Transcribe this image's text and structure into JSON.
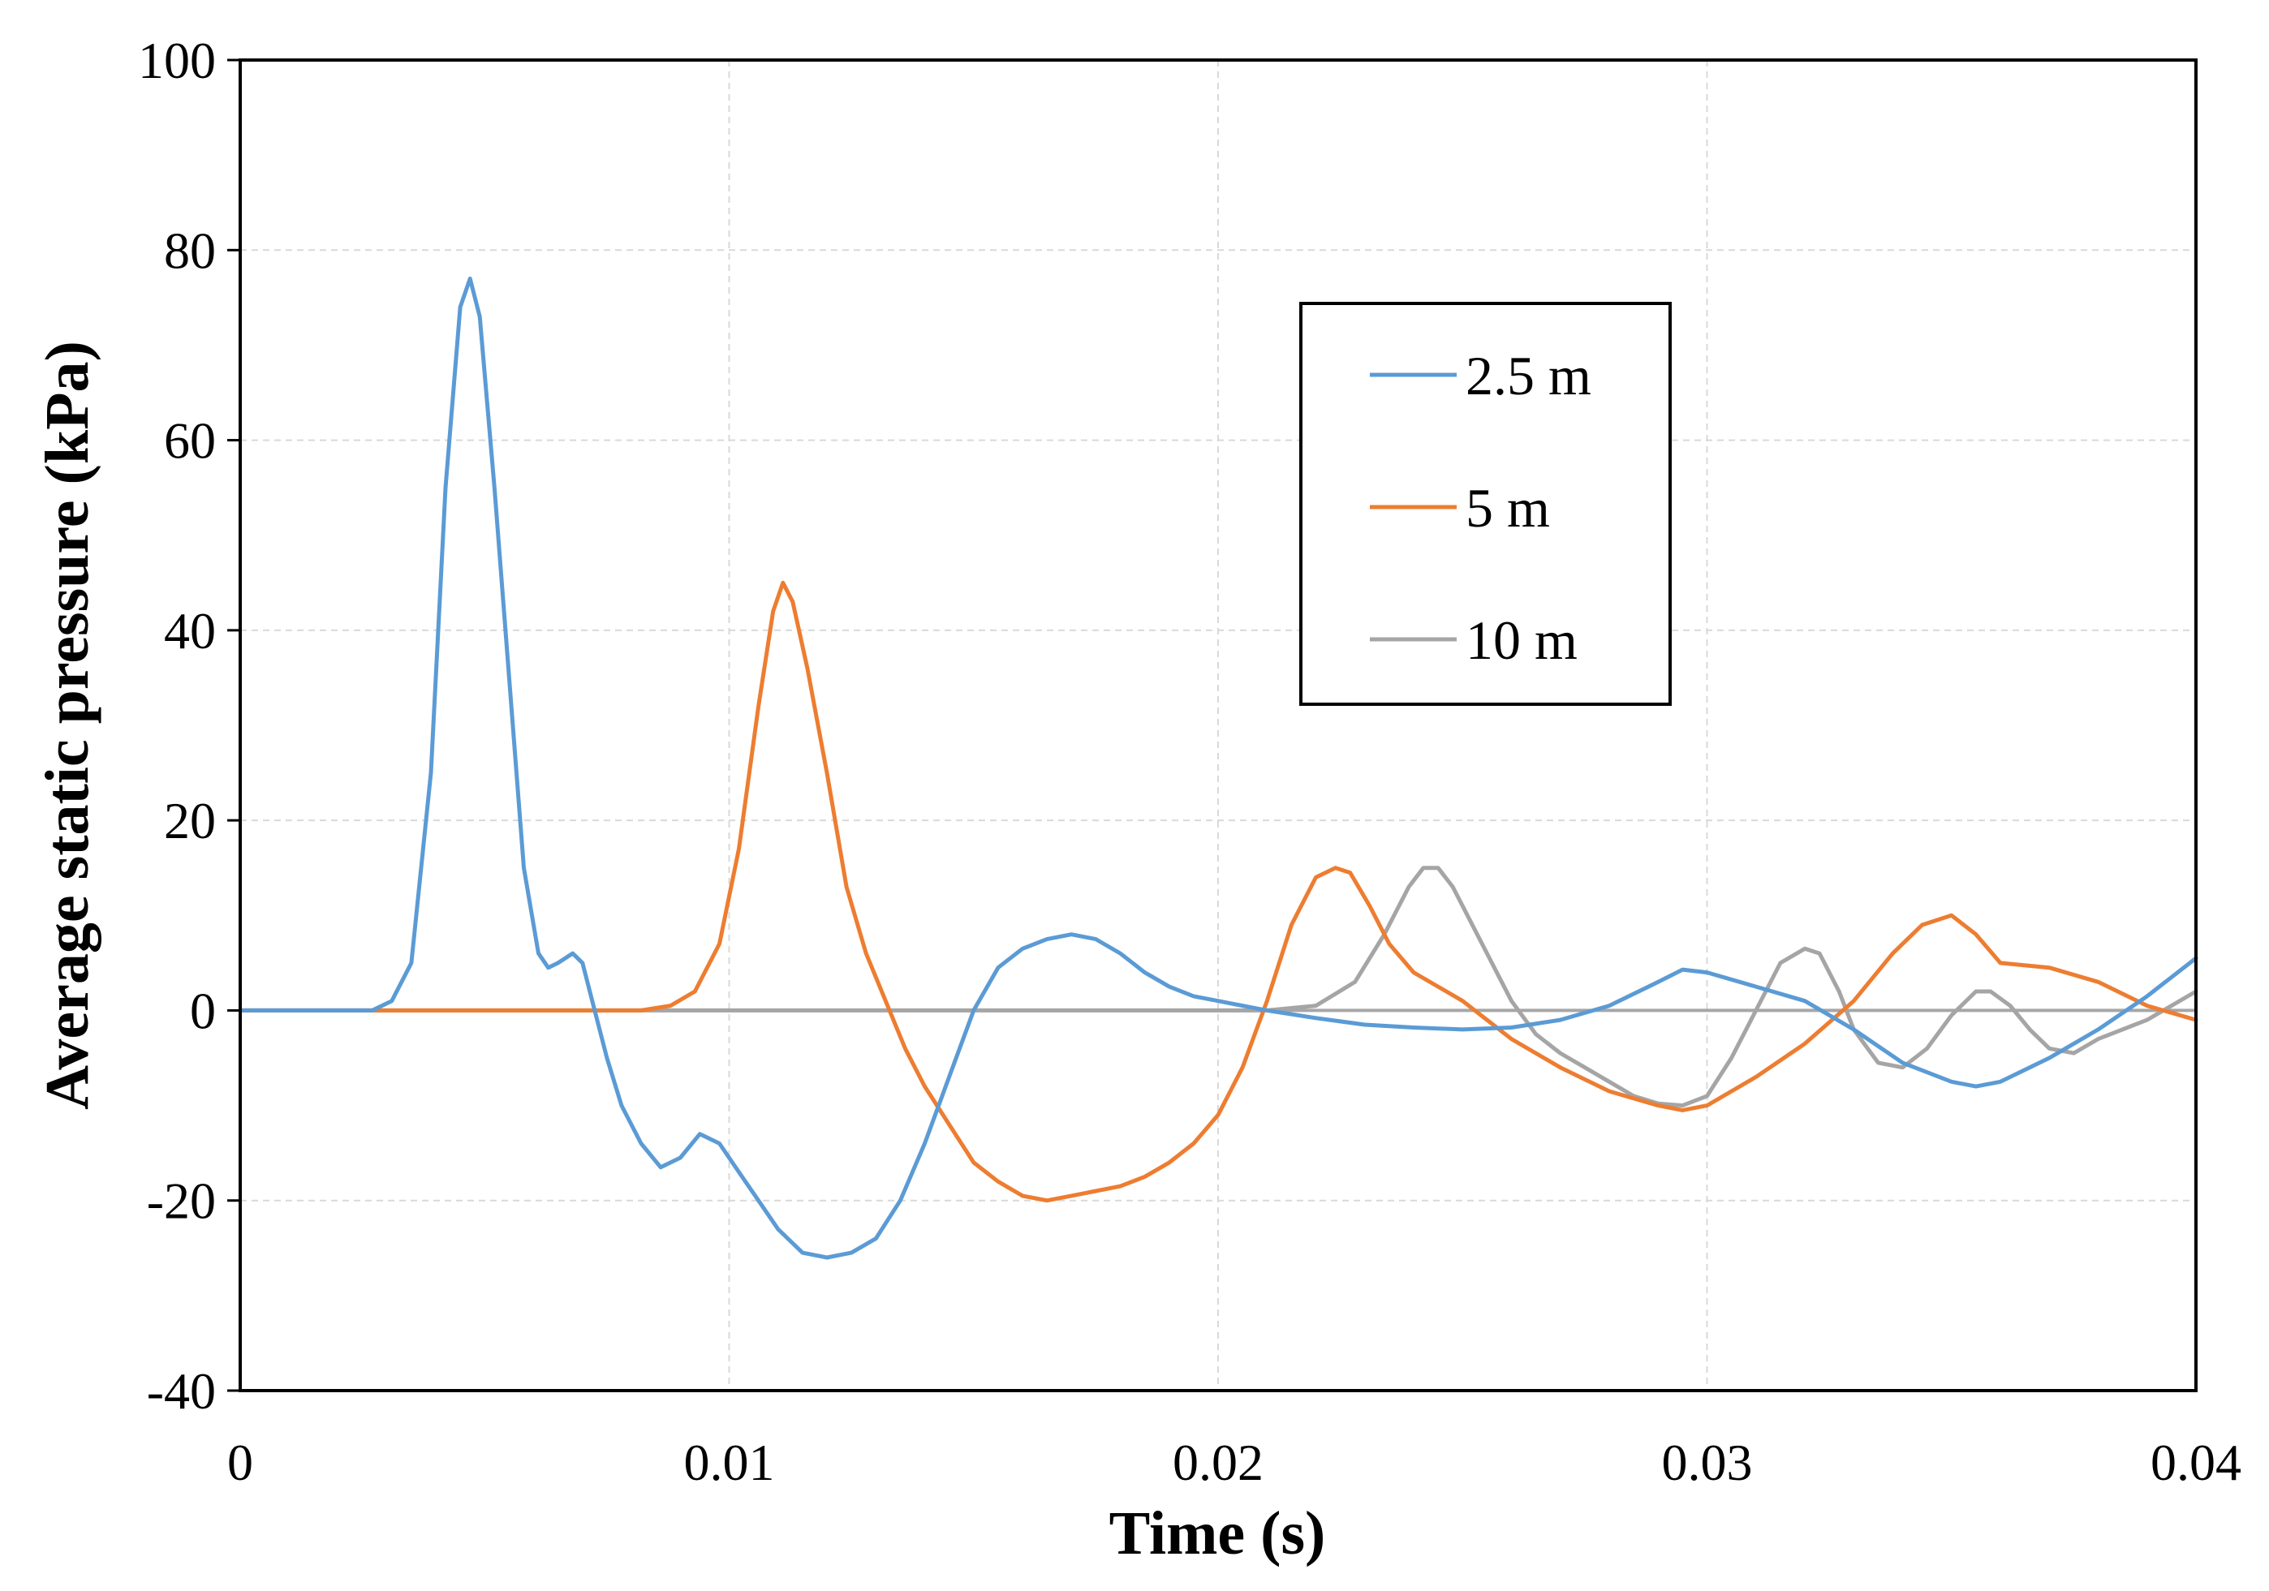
{
  "chart_data": {
    "type": "line",
    "title": "",
    "xlabel": "Time (s)",
    "ylabel": "Average static pressure (kPa)",
    "xlim": [
      0,
      0.04
    ],
    "ylim": [
      -40,
      100
    ],
    "x_ticks": [
      {
        "value": 0,
        "label": "0"
      },
      {
        "value": 0.01,
        "label": "0.01"
      },
      {
        "value": 0.02,
        "label": "0.02"
      },
      {
        "value": 0.03,
        "label": "0.03"
      },
      {
        "value": 0.04,
        "label": "0.04"
      }
    ],
    "y_ticks": [
      {
        "value": -40,
        "label": "-40"
      },
      {
        "value": -20,
        "label": "-20"
      },
      {
        "value": 0,
        "label": "0"
      },
      {
        "value": 20,
        "label": "20"
      },
      {
        "value": 40,
        "label": "40"
      },
      {
        "value": 60,
        "label": "60"
      },
      {
        "value": 80,
        "label": "80"
      },
      {
        "value": 100,
        "label": "100"
      }
    ],
    "grid": true,
    "legend_position": "upper-right",
    "series": [
      {
        "name": "2.5 m",
        "color": "#5B9BD5",
        "x": [
          0,
          0.0027,
          0.0031,
          0.0035,
          0.0039,
          0.0042,
          0.0045,
          0.0047,
          0.0049,
          0.0052,
          0.0055,
          0.0058,
          0.0061,
          0.0063,
          0.0065,
          0.0068,
          0.007,
          0.0072,
          0.0075,
          0.0078,
          0.0082,
          0.0086,
          0.009,
          0.0094,
          0.0098,
          0.0102,
          0.0106,
          0.011,
          0.0115,
          0.012,
          0.0125,
          0.013,
          0.0135,
          0.014,
          0.0145,
          0.015,
          0.0155,
          0.016,
          0.0165,
          0.017,
          0.0175,
          0.018,
          0.0185,
          0.019,
          0.0195,
          0.02,
          0.0205,
          0.021,
          0.022,
          0.023,
          0.024,
          0.025,
          0.026,
          0.027,
          0.028,
          0.029,
          0.0295,
          0.03,
          0.031,
          0.032,
          0.033,
          0.034,
          0.035,
          0.0355,
          0.036,
          0.037,
          0.038,
          0.039,
          0.04
        ],
        "y": [
          0,
          0,
          1,
          5,
          25,
          55,
          74,
          77,
          73,
          55,
          35,
          15,
          6,
          4.5,
          5,
          6,
          5,
          1,
          -5,
          -10,
          -14,
          -16.5,
          -15.5,
          -13,
          -14,
          -17,
          -20,
          -23,
          -25.5,
          -26,
          -25.5,
          -24,
          -20,
          -14,
          -7,
          0,
          4.5,
          6.5,
          7.5,
          8,
          7.5,
          6,
          4,
          2.5,
          1.5,
          1,
          0.5,
          0,
          -0.8,
          -1.5,
          -1.8,
          -2,
          -1.8,
          -1,
          0.5,
          3,
          4.3,
          4,
          2.5,
          1,
          -2,
          -5.5,
          -7.5,
          -8,
          -7.5,
          -5,
          -2,
          1.5,
          5.5
        ]
      },
      {
        "name": "5 m",
        "color": "#ED7D31",
        "x": [
          0,
          0.0082,
          0.0088,
          0.0093,
          0.0098,
          0.0102,
          0.0106,
          0.0109,
          0.0111,
          0.0113,
          0.0116,
          0.012,
          0.0124,
          0.0128,
          0.0132,
          0.0136,
          0.014,
          0.0145,
          0.015,
          0.0155,
          0.016,
          0.0165,
          0.017,
          0.0175,
          0.018,
          0.0185,
          0.019,
          0.0195,
          0.02,
          0.0205,
          0.021,
          0.0215,
          0.022,
          0.0224,
          0.0227,
          0.0231,
          0.0235,
          0.024,
          0.0245,
          0.025,
          0.0255,
          0.026,
          0.027,
          0.028,
          0.029,
          0.0295,
          0.03,
          0.031,
          0.032,
          0.033,
          0.0338,
          0.0344,
          0.035,
          0.0355,
          0.036,
          0.037,
          0.038,
          0.039,
          0.04
        ],
        "y": [
          0,
          0,
          0.5,
          2,
          7,
          17,
          32,
          42,
          45,
          43,
          36,
          25,
          13,
          6,
          1,
          -4,
          -8,
          -12,
          -16,
          -18,
          -19.5,
          -20,
          -19.5,
          -19,
          -18.5,
          -17.5,
          -16,
          -14,
          -11,
          -6,
          1,
          9,
          14,
          15,
          14.5,
          11,
          7,
          4,
          2.5,
          1,
          -1,
          -3,
          -6,
          -8.5,
          -10,
          -10.5,
          -10,
          -7,
          -3.5,
          1,
          6,
          9,
          10,
          8,
          5,
          4.5,
          3,
          0.5,
          -1
        ]
      },
      {
        "name": "10 m",
        "color": "#A5A5A5",
        "x": [
          0,
          0.021,
          0.022,
          0.0228,
          0.0234,
          0.0239,
          0.0242,
          0.0245,
          0.0248,
          0.0252,
          0.0256,
          0.026,
          0.0265,
          0.027,
          0.0275,
          0.028,
          0.0285,
          0.029,
          0.0295,
          0.03,
          0.0305,
          0.031,
          0.0315,
          0.032,
          0.0323,
          0.0327,
          0.033,
          0.0335,
          0.034,
          0.0345,
          0.035,
          0.0355,
          0.0358,
          0.0362,
          0.0366,
          0.037,
          0.0375,
          0.038,
          0.039,
          0.04
        ],
        "y": [
          0,
          0,
          0.5,
          3,
          8,
          13,
          15,
          15,
          13,
          9,
          5,
          1,
          -2.5,
          -4.5,
          -6,
          -7.5,
          -9,
          -9.8,
          -10,
          -9,
          -5,
          0,
          5,
          6.5,
          6,
          2,
          -2,
          -5.5,
          -6,
          -4,
          -0.5,
          2,
          2,
          0.5,
          -2,
          -4,
          -4.5,
          -3,
          -1,
          2
        ]
      }
    ]
  }
}
